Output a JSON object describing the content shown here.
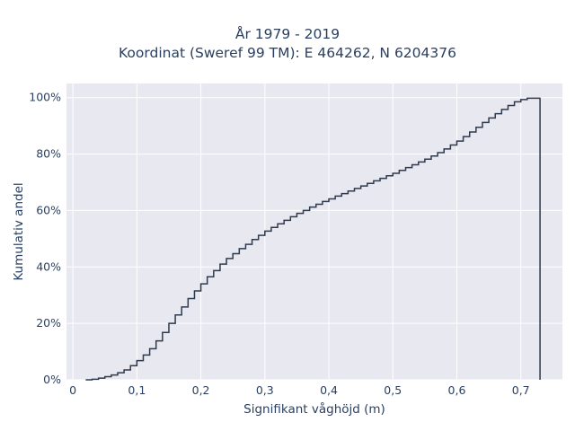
{
  "chart_data": {
    "type": "line",
    "subtype": "step-ecdf",
    "title_lines": [
      "År 1979 - 2019",
      "Koordinat (Sweref 99 TM): E 464262, N 6204376"
    ],
    "xlabel": "Signifikant våghöjd (m)",
    "ylabel": "Kumulativ andel",
    "xlim": [
      -0.01,
      0.765
    ],
    "ylim": [
      0,
      1.05
    ],
    "x_ticks": [
      0,
      0.1,
      0.2,
      0.3,
      0.4,
      0.5,
      0.6,
      0.7
    ],
    "x_tick_labels": [
      "0",
      "0,1",
      "0,2",
      "0,3",
      "0,4",
      "0,5",
      "0,6",
      "0,7"
    ],
    "y_ticks": [
      0,
      0.2,
      0.4,
      0.6,
      0.8,
      1.0
    ],
    "y_tick_labels": [
      "0%",
      "20%",
      "40%",
      "60%",
      "80%",
      "100%"
    ],
    "grid": true,
    "background": "#e8e8f0",
    "line_color": "#2e3a4e",
    "series": [
      {
        "points": [
          [
            0.02,
            0.0
          ],
          [
            0.03,
            0.002
          ],
          [
            0.04,
            0.006
          ],
          [
            0.05,
            0.011
          ],
          [
            0.06,
            0.017
          ],
          [
            0.07,
            0.025
          ],
          [
            0.08,
            0.035
          ],
          [
            0.09,
            0.05
          ],
          [
            0.1,
            0.068
          ],
          [
            0.11,
            0.088
          ],
          [
            0.12,
            0.11
          ],
          [
            0.13,
            0.138
          ],
          [
            0.14,
            0.168
          ],
          [
            0.15,
            0.2
          ],
          [
            0.16,
            0.23
          ],
          [
            0.17,
            0.258
          ],
          [
            0.18,
            0.288
          ],
          [
            0.19,
            0.315
          ],
          [
            0.2,
            0.34
          ],
          [
            0.21,
            0.365
          ],
          [
            0.22,
            0.387
          ],
          [
            0.23,
            0.41
          ],
          [
            0.24,
            0.43
          ],
          [
            0.25,
            0.447
          ],
          [
            0.26,
            0.465
          ],
          [
            0.27,
            0.48
          ],
          [
            0.28,
            0.497
          ],
          [
            0.29,
            0.512
          ],
          [
            0.3,
            0.527
          ],
          [
            0.31,
            0.54
          ],
          [
            0.32,
            0.553
          ],
          [
            0.33,
            0.565
          ],
          [
            0.34,
            0.578
          ],
          [
            0.35,
            0.59
          ],
          [
            0.36,
            0.6
          ],
          [
            0.37,
            0.612
          ],
          [
            0.38,
            0.622
          ],
          [
            0.39,
            0.632
          ],
          [
            0.4,
            0.641
          ],
          [
            0.41,
            0.651
          ],
          [
            0.42,
            0.66
          ],
          [
            0.43,
            0.669
          ],
          [
            0.44,
            0.678
          ],
          [
            0.45,
            0.687
          ],
          [
            0.46,
            0.696
          ],
          [
            0.47,
            0.705
          ],
          [
            0.48,
            0.714
          ],
          [
            0.49,
            0.723
          ],
          [
            0.5,
            0.732
          ],
          [
            0.51,
            0.742
          ],
          [
            0.52,
            0.752
          ],
          [
            0.53,
            0.762
          ],
          [
            0.54,
            0.772
          ],
          [
            0.55,
            0.782
          ],
          [
            0.56,
            0.793
          ],
          [
            0.57,
            0.805
          ],
          [
            0.58,
            0.818
          ],
          [
            0.59,
            0.832
          ],
          [
            0.6,
            0.846
          ],
          [
            0.61,
            0.862
          ],
          [
            0.62,
            0.878
          ],
          [
            0.63,
            0.895
          ],
          [
            0.64,
            0.912
          ],
          [
            0.65,
            0.928
          ],
          [
            0.66,
            0.943
          ],
          [
            0.67,
            0.958
          ],
          [
            0.68,
            0.972
          ],
          [
            0.69,
            0.985
          ],
          [
            0.7,
            0.993
          ],
          [
            0.71,
            0.998
          ],
          [
            0.73,
            1.0
          ]
        ],
        "drop_to_zero_at": 0.73
      }
    ]
  }
}
